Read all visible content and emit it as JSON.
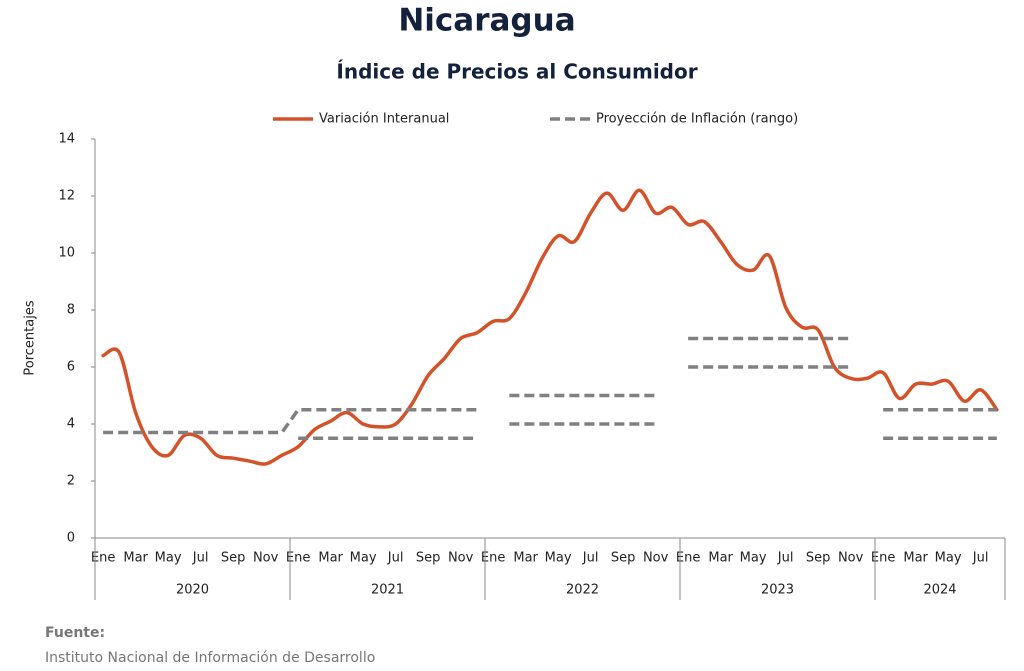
{
  "chart_data": {
    "type": "line",
    "title": "Nicaragua",
    "subtitle": "Índice de Precios al Consumidor",
    "ylabel": "Porcentajes",
    "categories": [
      "Ene",
      null,
      "Mar",
      null,
      "May",
      null,
      "Jul",
      null,
      "Sep",
      null,
      "Nov",
      null,
      "Ene",
      null,
      "Mar",
      null,
      "May",
      null,
      "Jul",
      null,
      "Sep",
      null,
      "Nov",
      null,
      "Ene",
      null,
      "Mar",
      null,
      "May",
      null,
      "Jul",
      null,
      "Sep",
      null,
      "Nov",
      null,
      "Ene",
      null,
      "Mar",
      null,
      "May",
      null,
      "Jul",
      null,
      "Sep",
      null,
      "Nov",
      null,
      "Ene",
      null,
      "Mar",
      null,
      "May",
      null,
      "Jul",
      null
    ],
    "years": [
      "2020",
      "2021",
      "2022",
      "2023",
      "2024"
    ],
    "series": [
      {
        "name": "Variación Interanual",
        "color": "#d4522a",
        "values": [
          6.4,
          6.5,
          4.4,
          3.2,
          2.9,
          3.6,
          3.5,
          2.9,
          2.8,
          2.7,
          2.6,
          2.9,
          3.2,
          3.8,
          4.1,
          4.4,
          4.0,
          3.9,
          4.0,
          4.7,
          5.7,
          6.3,
          7.0,
          7.2,
          7.6,
          7.7,
          8.6,
          9.8,
          10.6,
          10.4,
          11.4,
          12.1,
          11.5,
          12.2,
          11.4,
          11.6,
          11.0,
          11.1,
          10.4,
          9.6,
          9.4,
          9.9,
          8.1,
          7.4,
          7.3,
          6.0,
          5.6,
          5.6,
          5.8,
          4.9,
          5.4,
          5.4,
          5.5,
          4.8,
          5.2,
          4.5
        ]
      },
      {
        "name": "Proyección de Inflación (rango)",
        "color": "#808080",
        "dashed": true,
        "values": [
          3.7,
          3.7,
          3.7,
          3.7,
          3.7,
          3.7,
          3.7,
          3.7,
          3.7,
          3.7,
          3.7,
          3.7,
          4.5,
          4.5,
          4.5,
          4.5,
          4.5,
          4.5,
          4.5,
          4.5,
          4.5,
          4.5,
          4.5,
          4.5,
          null,
          5,
          5,
          5,
          5,
          5,
          5,
          5,
          5,
          5,
          5,
          null,
          7,
          7,
          7,
          7,
          7,
          7,
          7,
          7,
          7,
          7,
          7,
          null,
          4.5,
          4.5,
          4.5,
          4.5,
          4.5,
          4.5,
          4.5,
          4.5
        ],
        "lower": [
          null,
          null,
          null,
          null,
          null,
          null,
          null,
          null,
          null,
          null,
          null,
          null,
          3.5,
          3.5,
          3.5,
          3.5,
          3.5,
          3.5,
          3.5,
          3.5,
          3.5,
          3.5,
          3.5,
          3.5,
          null,
          4,
          4,
          4,
          4,
          4,
          4,
          4,
          4,
          4,
          4,
          null,
          6,
          6,
          6,
          6,
          6,
          6,
          6,
          6,
          6,
          6,
          6,
          null,
          3.5,
          3.5,
          3.5,
          3.5,
          3.5,
          3.5,
          3.5,
          3.5
        ]
      }
    ],
    "ylim": [
      0,
      14
    ],
    "yticks": [
      0,
      2,
      4,
      6,
      8,
      10,
      12,
      14
    ],
    "grid": false,
    "legend": "top"
  },
  "footer": {
    "label": "Fuente:",
    "source": "Instituto Nacional de Información de  Desarrollo"
  }
}
